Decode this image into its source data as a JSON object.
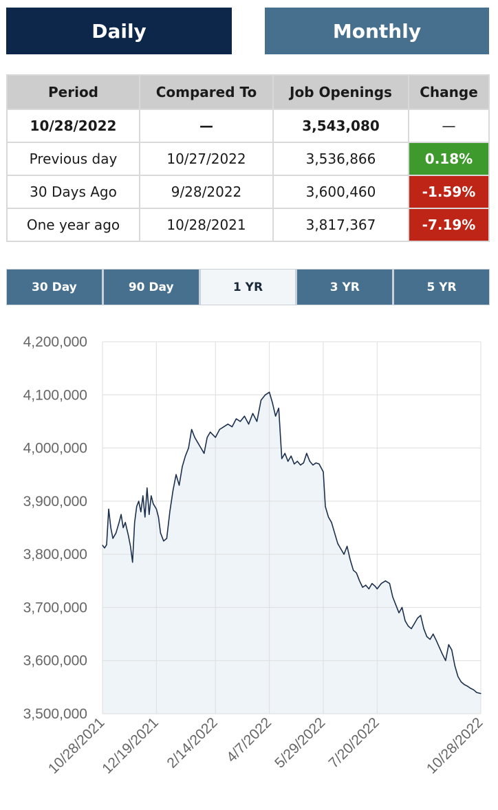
{
  "toggle": {
    "daily_label": "Daily",
    "monthly_label": "Monthly",
    "daily_color": "#0c2749",
    "monthly_color": "#47708f"
  },
  "table": {
    "headers": [
      "Period",
      "Compared To",
      "Job Openings",
      "Change"
    ],
    "rows": [
      {
        "period": "10/28/2022",
        "compared": "—",
        "openings": "3,543,080",
        "change": "—",
        "status": "none"
      },
      {
        "period": "Previous day",
        "compared": "10/27/2022",
        "openings": "3,536,866",
        "change": "0.18%",
        "status": "positive"
      },
      {
        "period": "30 Days Ago",
        "compared": "9/28/2022",
        "openings": "3,600,460",
        "change": "-1.59%",
        "status": "negative"
      },
      {
        "period": "One year ago",
        "compared": "10/28/2021",
        "openings": "3,817,367",
        "change": "-7.19%",
        "status": "negative"
      }
    ],
    "positive_color": "#3e9a2c",
    "negative_color": "#bf2517"
  },
  "ranges": {
    "tabs": [
      "30 Day",
      "90 Day",
      "1 YR",
      "3 YR",
      "5 YR"
    ],
    "active": "1 YR",
    "tab_color": "#47708f"
  },
  "chart_data": {
    "type": "area",
    "title": "",
    "xlabel": "",
    "ylabel": "",
    "x_ticks": [
      "10/28/2021",
      "12/19/2021",
      "2/14/2022",
      "4/7/2022",
      "5/29/2022",
      "7/20/2022",
      "10/28/2022"
    ],
    "y_ticks": [
      "4,200,000",
      "4,100,000",
      "4,000,000",
      "3,900,000",
      "3,800,000",
      "3,700,000",
      "3,600,000",
      "3,500,000"
    ],
    "ylim": [
      3500000,
      4200000
    ],
    "xlim": [
      "10/28/2021",
      "10/28/2022"
    ],
    "grid": true,
    "line_color": "#1b2f4d",
    "fill_color": "#eef4f8",
    "series": [
      {
        "values": [
          [
            "10/28/2021",
            3817000
          ],
          [
            "10/30/2021",
            3812000
          ],
          [
            "11/1/2021",
            3818000
          ],
          [
            "11/3/2021",
            3885000
          ],
          [
            "11/5/2021",
            3850000
          ],
          [
            "11/7/2021",
            3830000
          ],
          [
            "11/10/2021",
            3840000
          ],
          [
            "11/13/2021",
            3860000
          ],
          [
            "11/15/2021",
            3875000
          ],
          [
            "11/17/2021",
            3850000
          ],
          [
            "11/19/2021",
            3860000
          ],
          [
            "11/22/2021",
            3835000
          ],
          [
            "11/24/2021",
            3815000
          ],
          [
            "11/26/2021",
            3785000
          ],
          [
            "11/28/2021",
            3860000
          ],
          [
            "11/30/2021",
            3890000
          ],
          [
            "12/2/2021",
            3900000
          ],
          [
            "12/4/2021",
            3880000
          ],
          [
            "12/6/2021",
            3910000
          ],
          [
            "12/8/2021",
            3870000
          ],
          [
            "12/10/2021",
            3925000
          ],
          [
            "12/12/2021",
            3875000
          ],
          [
            "12/14/2021",
            3910000
          ],
          [
            "12/16/2021",
            3895000
          ],
          [
            "12/19/2021",
            3885000
          ],
          [
            "12/21/2021",
            3870000
          ],
          [
            "12/23/2021",
            3840000
          ],
          [
            "12/26/2021",
            3825000
          ],
          [
            "12/29/2021",
            3830000
          ],
          [
            "1/1/2022",
            3880000
          ],
          [
            "1/4/2022",
            3920000
          ],
          [
            "1/7/2022",
            3950000
          ],
          [
            "1/10/2022",
            3930000
          ],
          [
            "1/13/2022",
            3965000
          ],
          [
            "1/16/2022",
            3985000
          ],
          [
            "1/19/2022",
            4000000
          ],
          [
            "1/22/2022",
            4035000
          ],
          [
            "1/25/2022",
            4020000
          ],
          [
            "1/28/2022",
            4010000
          ],
          [
            "1/31/2022",
            4000000
          ],
          [
            "2/3/2022",
            3990000
          ],
          [
            "2/6/2022",
            4020000
          ],
          [
            "2/9/2022",
            4030000
          ],
          [
            "2/14/2022",
            4020000
          ],
          [
            "2/18/2022",
            4035000
          ],
          [
            "2/22/2022",
            4040000
          ],
          [
            "2/26/2022",
            4045000
          ],
          [
            "3/2/2022",
            4040000
          ],
          [
            "3/6/2022",
            4055000
          ],
          [
            "3/10/2022",
            4050000
          ],
          [
            "3/14/2022",
            4060000
          ],
          [
            "3/18/2022",
            4045000
          ],
          [
            "3/22/2022",
            4065000
          ],
          [
            "3/26/2022",
            4050000
          ],
          [
            "3/30/2022",
            4090000
          ],
          [
            "4/3/2022",
            4100000
          ],
          [
            "4/7/2022",
            4105000
          ],
          [
            "4/10/2022",
            4085000
          ],
          [
            "4/13/2022",
            4060000
          ],
          [
            "4/16/2022",
            4075000
          ],
          [
            "4/19/2022",
            3980000
          ],
          [
            "4/22/2022",
            3990000
          ],
          [
            "4/25/2022",
            3975000
          ],
          [
            "4/28/2022",
            3985000
          ],
          [
            "5/1/2022",
            3970000
          ],
          [
            "5/4/2022",
            3975000
          ],
          [
            "5/7/2022",
            3968000
          ],
          [
            "5/10/2022",
            3972000
          ],
          [
            "5/13/2022",
            3990000
          ],
          [
            "5/16/2022",
            3975000
          ],
          [
            "5/19/2022",
            3968000
          ],
          [
            "5/22/2022",
            3972000
          ],
          [
            "5/25/2022",
            3970000
          ],
          [
            "5/29/2022",
            3955000
          ],
          [
            "5/31/2022",
            3890000
          ],
          [
            "6/3/2022",
            3870000
          ],
          [
            "6/6/2022",
            3860000
          ],
          [
            "6/9/2022",
            3840000
          ],
          [
            "6/12/2022",
            3820000
          ],
          [
            "6/15/2022",
            3810000
          ],
          [
            "6/18/2022",
            3800000
          ],
          [
            "6/21/2022",
            3815000
          ],
          [
            "6/24/2022",
            3790000
          ],
          [
            "6/27/2022",
            3770000
          ],
          [
            "6/30/2022",
            3765000
          ],
          [
            "7/3/2022",
            3750000
          ],
          [
            "7/6/2022",
            3738000
          ],
          [
            "7/9/2022",
            3742000
          ],
          [
            "7/12/2022",
            3735000
          ],
          [
            "7/15/2022",
            3745000
          ],
          [
            "7/18/2022",
            3740000
          ],
          [
            "7/20/2022",
            3735000
          ],
          [
            "7/24/2022",
            3745000
          ],
          [
            "7/28/2022",
            3750000
          ],
          [
            "8/1/2022",
            3745000
          ],
          [
            "8/4/2022",
            3720000
          ],
          [
            "8/7/2022",
            3705000
          ],
          [
            "8/10/2022",
            3690000
          ],
          [
            "8/13/2022",
            3700000
          ],
          [
            "8/16/2022",
            3675000
          ],
          [
            "8/19/2022",
            3665000
          ],
          [
            "8/22/2022",
            3660000
          ],
          [
            "8/25/2022",
            3670000
          ],
          [
            "8/28/2022",
            3680000
          ],
          [
            "8/31/2022",
            3685000
          ],
          [
            "9/3/2022",
            3660000
          ],
          [
            "9/6/2022",
            3645000
          ],
          [
            "9/9/2022",
            3640000
          ],
          [
            "9/12/2022",
            3650000
          ],
          [
            "9/15/2022",
            3638000
          ],
          [
            "9/18/2022",
            3625000
          ],
          [
            "9/21/2022",
            3612000
          ],
          [
            "9/24/2022",
            3600000
          ],
          [
            "9/27/2022",
            3630000
          ],
          [
            "9/30/2022",
            3620000
          ],
          [
            "10/3/2022",
            3590000
          ],
          [
            "10/6/2022",
            3570000
          ],
          [
            "10/9/2022",
            3560000
          ],
          [
            "10/12/2022",
            3555000
          ],
          [
            "10/15/2022",
            3552000
          ],
          [
            "10/18/2022",
            3548000
          ],
          [
            "10/21/2022",
            3545000
          ],
          [
            "10/24/2022",
            3540000
          ],
          [
            "10/28/2022",
            3538000
          ]
        ]
      }
    ]
  }
}
